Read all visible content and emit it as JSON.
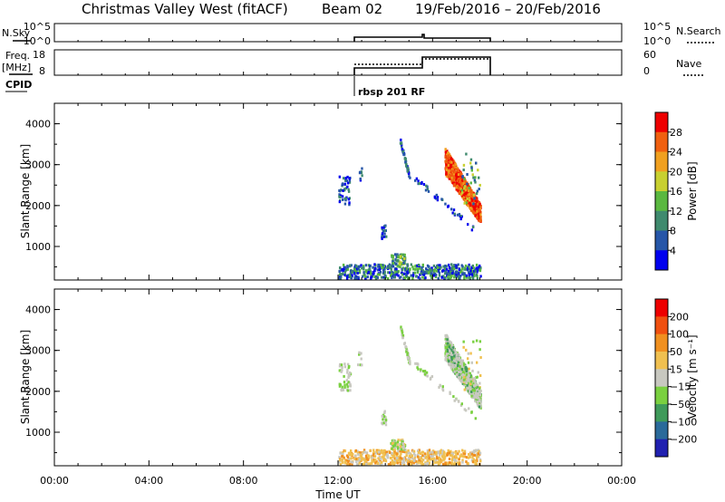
{
  "header": {
    "station": "Christmas Valley West (fitACF)",
    "beam": "Beam 02",
    "dates": "19/Feb/2016 – 20/Feb/2016"
  },
  "panels": {
    "nsky": {
      "left_label": "N.Sky",
      "right_label": "N.Search",
      "ticks_left": [
        "10^5",
        "10^0"
      ],
      "ticks_right": [
        "10^5",
        "10^0"
      ]
    },
    "freq": {
      "left_label_1": "Freq.",
      "left_label_2": "[MHz]",
      "right_label": "Nave",
      "ticks_left": [
        "18",
        "8"
      ],
      "ticks_right": [
        "60",
        "0"
      ]
    },
    "cpid": {
      "label": "CPID",
      "program": "rbsp 201 RF"
    }
  },
  "chart_data": [
    {
      "type": "heatmap",
      "name": "power",
      "ylabel": "Slant Range [km]",
      "xlabel": "",
      "ylim": [
        180,
        4500
      ],
      "xlim": [
        0,
        24
      ],
      "yticks": [
        1000,
        2000,
        3000,
        4000
      ],
      "colorbar": {
        "label": "Power [dB]",
        "ticks": [
          "4",
          "8",
          "12",
          "16",
          "20",
          "24",
          "28"
        ],
        "colors": [
          "#0000ee",
          "#2656a8",
          "#3f8a6e",
          "#5ab840",
          "#c8d030",
          "#f0a020",
          "#f06010",
          "#ee0000"
        ]
      }
    },
    {
      "type": "heatmap",
      "name": "velocity",
      "ylabel": "Slant Range [km]",
      "xlabel": "Time UT",
      "ylim": [
        180,
        4500
      ],
      "xlim": [
        0,
        24
      ],
      "yticks": [
        1000,
        2000,
        3000,
        4000
      ],
      "xticks": [
        "00:00",
        "04:00",
        "08:00",
        "12:00",
        "16:00",
        "20:00",
        "00:00"
      ],
      "colorbar": {
        "label": "Velocity [m s⁻¹]",
        "ticks": [
          "200",
          "100",
          "50",
          "15",
          "−15",
          "−50",
          "−100",
          "−200"
        ],
        "colors": [
          "#2020b0",
          "#2a6a9a",
          "#3f9a5a",
          "#7ad040",
          "#c8c8c0",
          "#f0c050",
          "#f09020",
          "#f05010",
          "#ee0000"
        ]
      }
    }
  ]
}
